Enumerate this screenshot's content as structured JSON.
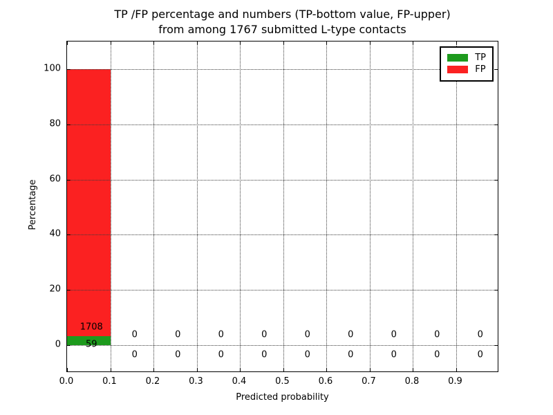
{
  "chart_data": {
    "type": "bar",
    "title_line1": "TP /FP percentage and numbers (TP-bottom value, FP-upper)",
    "title_line2": "from among 1767 submitted L-type contacts",
    "xlabel": "Predicted probability",
    "ylabel": "Percentage",
    "xlim": [
      0,
      1
    ],
    "ylim": [
      -10,
      110
    ],
    "x_tick_values": [
      0,
      0.1,
      0.2,
      0.3,
      0.4,
      0.5,
      0.6,
      0.7,
      0.8,
      0.9
    ],
    "x_tick_labels": [
      "0.0",
      "0.1",
      "0.2",
      "0.3",
      "0.4",
      "0.5",
      "0.6",
      "0.7",
      "0.8",
      "0.9"
    ],
    "y_tick_values": [
      0,
      20,
      40,
      60,
      80,
      100
    ],
    "y_tick_labels": [
      "0",
      "20",
      "40",
      "60",
      "80",
      "100"
    ],
    "grid": "dotted",
    "total": 1767,
    "bin_width": 0.1,
    "bin_starts": [
      0,
      0.1,
      0.2,
      0.3,
      0.4,
      0.5,
      0.6,
      0.7,
      0.8,
      0.9
    ],
    "series": [
      {
        "name": "TP",
        "color": "#1d9a1d",
        "counts": [
          59,
          0,
          0,
          0,
          0,
          0,
          0,
          0,
          0,
          0
        ]
      },
      {
        "name": "FP",
        "color": "#fb2121",
        "counts": [
          1708,
          0,
          0,
          0,
          0,
          0,
          0,
          0,
          0,
          0
        ]
      }
    ],
    "legend": {
      "position": "upper right",
      "entries": [
        {
          "label": "TP",
          "color": "#1d9a1d"
        },
        {
          "label": "FP",
          "color": "#fb2121"
        }
      ]
    }
  }
}
